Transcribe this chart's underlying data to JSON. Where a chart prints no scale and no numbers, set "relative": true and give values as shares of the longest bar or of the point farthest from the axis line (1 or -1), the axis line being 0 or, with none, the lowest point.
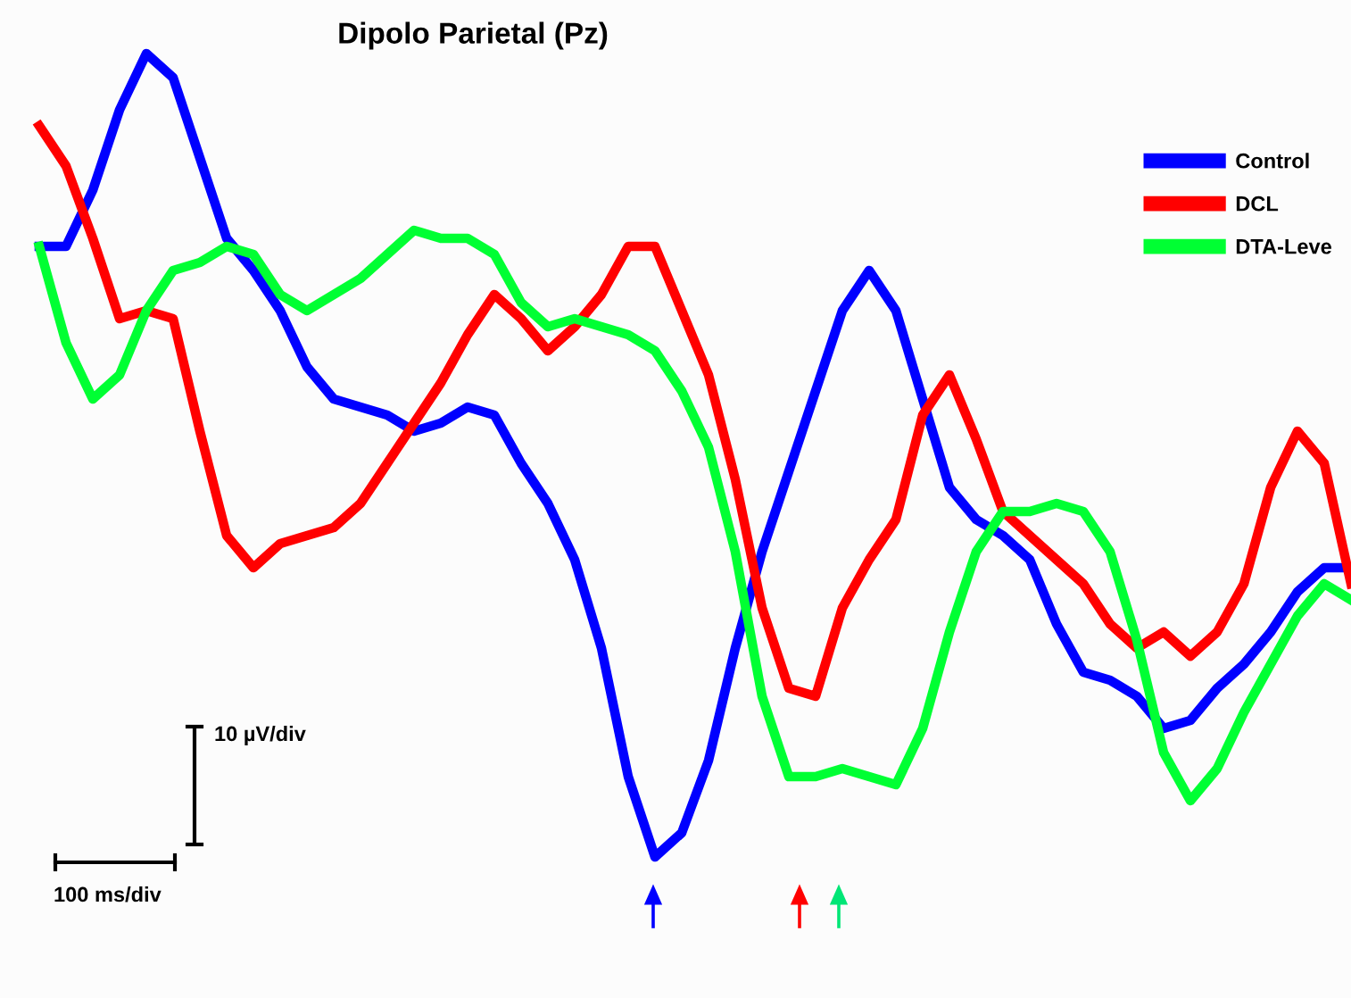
{
  "chart_data": {
    "type": "line",
    "title": "Dipolo Parietal (Pz)",
    "relative": true,
    "legend": "top right",
    "tick_labels": false,
    "categories": [
      null,
      null,
      null,
      null,
      null,
      null,
      null,
      null,
      null,
      null,
      null,
      null,
      null,
      null,
      null,
      null,
      null,
      null,
      null,
      null,
      null,
      null,
      null,
      null,
      null,
      null,
      null,
      null,
      null,
      null,
      null,
      null,
      null,
      null,
      null,
      null,
      null,
      null,
      null,
      null,
      null,
      null,
      null,
      null,
      null,
      null,
      null,
      null,
      null,
      null
    ],
    "series": [
      {
        "name": "Control",
        "color": "#0000ff",
        "values": [
          0.76,
          0.76,
          0.83,
          0.93,
          1.0,
          0.97,
          0.87,
          0.77,
          0.73,
          0.68,
          0.61,
          0.57,
          0.56,
          0.55,
          0.53,
          0.54,
          0.56,
          0.55,
          0.49,
          0.44,
          0.37,
          0.26,
          0.1,
          0.0,
          0.03,
          0.12,
          0.26,
          0.38,
          0.48,
          0.58,
          0.68,
          0.73,
          0.68,
          0.57,
          0.46,
          0.42,
          0.4,
          0.37,
          0.29,
          0.23,
          0.22,
          0.2,
          0.16,
          0.17,
          0.21,
          0.24,
          0.28,
          0.33,
          0.36,
          0.36
        ]
      },
      {
        "name": "DCL",
        "color": "#ff0000",
        "values": [
          0.91,
          0.86,
          0.77,
          0.67,
          0.68,
          0.67,
          0.53,
          0.4,
          0.36,
          0.39,
          0.4,
          0.41,
          0.44,
          0.49,
          0.54,
          0.59,
          0.65,
          0.7,
          0.67,
          0.63,
          0.66,
          0.7,
          0.76,
          0.76,
          0.68,
          0.6,
          0.47,
          0.31,
          0.21,
          0.2,
          0.31,
          0.37,
          0.42,
          0.55,
          0.6,
          0.52,
          0.43,
          0.4,
          0.37,
          0.34,
          0.29,
          0.26,
          0.28,
          0.25,
          0.28,
          0.34,
          0.46,
          0.53,
          0.49,
          0.34
        ]
      },
      {
        "name": "DTA-Leve",
        "color": "#00ff33",
        "values": [
          0.76,
          0.64,
          0.57,
          0.6,
          0.68,
          0.73,
          0.74,
          0.76,
          0.75,
          0.7,
          0.68,
          0.7,
          0.72,
          0.75,
          0.78,
          0.77,
          0.77,
          0.75,
          0.69,
          0.66,
          0.67,
          0.66,
          0.65,
          0.63,
          0.58,
          0.51,
          0.38,
          0.2,
          0.1,
          0.1,
          0.11,
          0.1,
          0.09,
          0.16,
          0.28,
          0.38,
          0.43,
          0.43,
          0.44,
          0.43,
          0.38,
          0.27,
          0.13,
          0.07,
          0.11,
          0.18,
          0.24,
          0.3,
          0.34,
          0.32
        ]
      }
    ],
    "annotations": [
      "10 µV/div",
      "100 ms/div"
    ]
  }
}
